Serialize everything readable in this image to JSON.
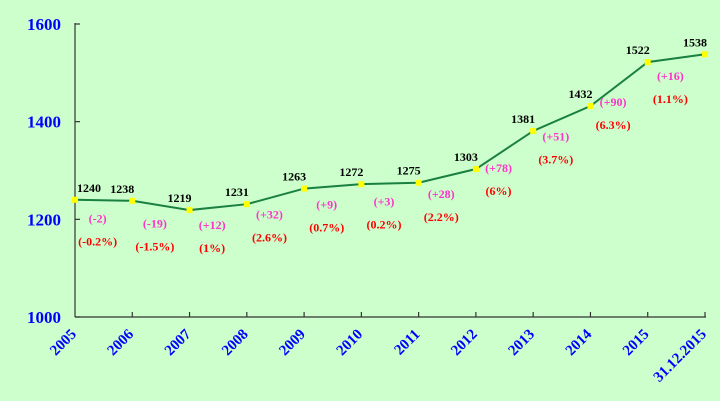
{
  "chart_data": {
    "type": "line",
    "title": "",
    "xlabel": "",
    "ylabel": "",
    "ylim": [
      1000,
      1600
    ],
    "yticks": [
      1000,
      1200,
      1400,
      1600
    ],
    "grid": false,
    "legend": null,
    "categories": [
      "2005",
      "2006",
      "2007",
      "2008",
      "2009",
      "2010",
      "2011",
      "2012",
      "2013",
      "2014",
      "2015",
      "31.12.2015"
    ],
    "values": [
      1240,
      1238,
      1219,
      1231,
      1263,
      1272,
      1275,
      1303,
      1381,
      1432,
      1522,
      1538
    ],
    "annotations": {
      "absolute_change": [
        "(-2)",
        "(-19)",
        "(+12)",
        "(+32)",
        "(+9)",
        "(+3)",
        "(+28)",
        "(+78)",
        "(+51)",
        "(+90)",
        "(+16)"
      ],
      "percent_change": [
        "(-0.2%)",
        "(-1.5%)",
        "(1%)",
        "(2.6%)",
        "(0.7%)",
        "(0.2%)",
        "(2.2%)",
        "(6%)",
        "(3.7%)",
        "(6.3%)",
        "(1.1%)"
      ]
    },
    "colors": {
      "background": "#ccffcc",
      "line": "#1a8040",
      "marker": "#ffff00",
      "axis_labels": "#0000ff",
      "value_labels": "#000000",
      "change_labels": "#ff33cc",
      "percent_labels": "#ff0000"
    }
  }
}
